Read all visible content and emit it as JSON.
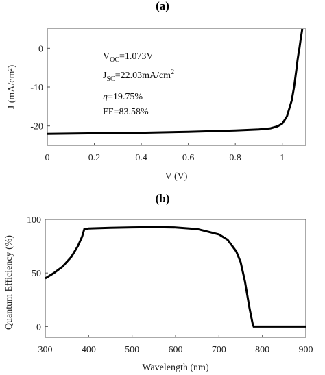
{
  "chart_data": [
    {
      "panel_label": "(a)",
      "type": "line",
      "xlabel": "V (V)",
      "ylabel": "J (mA/cm²)",
      "xlim": [
        0,
        1.1
      ],
      "ylim": [
        -25,
        5
      ],
      "xticks": [
        0,
        0.2,
        0.4,
        0.6,
        0.8,
        1
      ],
      "xtick_labels": [
        "0",
        "0.2",
        "0.4",
        "0.6",
        "0.8",
        "1"
      ],
      "yticks": [
        -20,
        -10,
        0
      ],
      "ytick_labels": [
        "-20",
        "-10",
        "0"
      ],
      "grid": false,
      "series": [
        {
          "x": [
            0,
            0.2,
            0.4,
            0.6,
            0.8,
            0.9,
            0.95,
            0.98,
            1.0,
            1.02,
            1.04,
            1.05,
            1.06,
            1.065,
            1.07,
            1.073,
            1.08,
            1.085
          ],
          "y": [
            -22.03,
            -21.9,
            -21.75,
            -21.5,
            -21.15,
            -20.9,
            -20.6,
            -20.1,
            -19.4,
            -17.5,
            -13.5,
            -10.0,
            -5.5,
            -3.0,
            -1.0,
            0,
            3.0,
            5.0
          ]
        }
      ],
      "annotations": {
        "voc": {
          "main": "V",
          "sub": "OC",
          "rest": "=1.073V"
        },
        "jsc": {
          "main": "J",
          "sub": "SC",
          "rest": "=22.03mA/cm",
          "sup": "2"
        },
        "eta": {
          "main": "η",
          "rest": "=19.75%"
        },
        "ff": {
          "main": "FF=83.58%"
        }
      }
    },
    {
      "panel_label": "(b)",
      "type": "line",
      "xlabel": "Wavelength (nm)",
      "ylabel": "Quantum Efficiency (%)",
      "xlim": [
        300,
        900
      ],
      "ylim": [
        -10,
        100
      ],
      "xticks": [
        300,
        400,
        500,
        600,
        700,
        800,
        900
      ],
      "xtick_labels": [
        "300",
        "400",
        "500",
        "600",
        "700",
        "800",
        "900"
      ],
      "yticks": [
        0,
        50,
        100
      ],
      "ytick_labels": [
        "0",
        "50",
        "100"
      ],
      "grid": false,
      "series": [
        {
          "x": [
            300,
            320,
            340,
            360,
            375,
            385,
            390,
            400,
            450,
            500,
            550,
            600,
            650,
            700,
            720,
            740,
            750,
            760,
            765,
            770,
            775,
            778,
            780,
            800,
            850,
            900
          ],
          "y": [
            45,
            50,
            56,
            65,
            75,
            84,
            91,
            91.5,
            92.2,
            92.6,
            92.8,
            92.5,
            91,
            86,
            81,
            70,
            60,
            42,
            30,
            18,
            8,
            2,
            0,
            0,
            0,
            0
          ]
        }
      ]
    }
  ]
}
